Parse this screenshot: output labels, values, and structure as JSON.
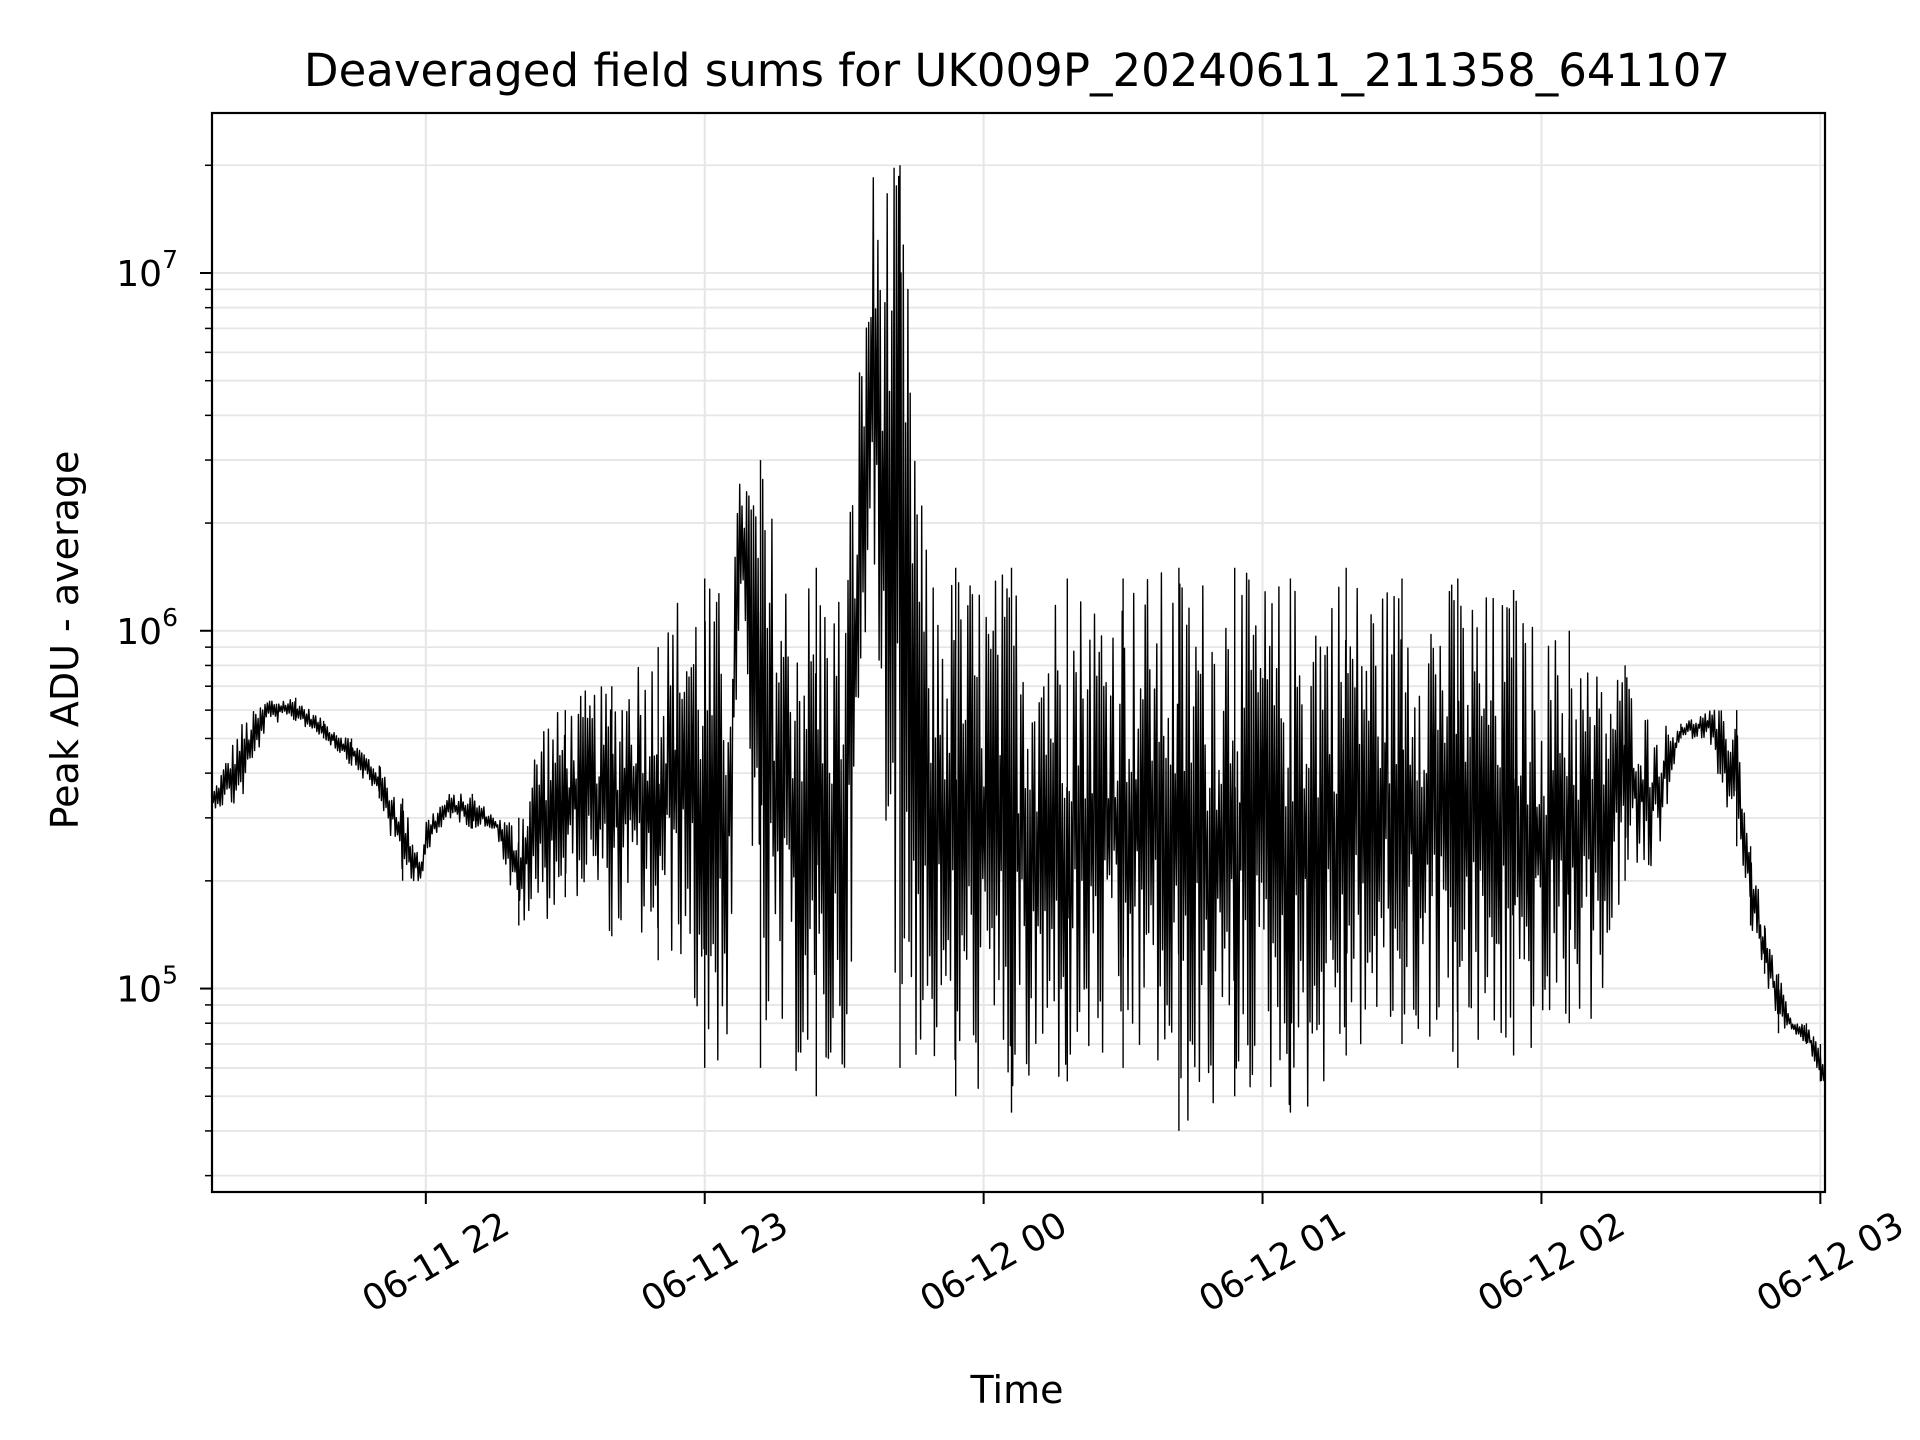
{
  "chart_data": {
    "type": "line",
    "title": "Deaveraged field sums for UK009P_20240611_211358_641107",
    "xlabel": "Time",
    "ylabel": "Peak ADU - average",
    "yscale": "log",
    "xlim": [
      "2024-06-11 21:14",
      "2024-06-12 03:01"
    ],
    "ylim": [
      27000,
      28000000
    ],
    "grid": true,
    "line_color": "#000000",
    "grid_color": "#e6e6e6",
    "x_tick_labels": [
      "06-11 22",
      "06-11 23",
      "06-12 00",
      "06-12 01",
      "06-12 02",
      "06-12 03"
    ],
    "y_tick_labels": [
      {
        "base": "10",
        "exp": "5",
        "value": 100000
      },
      {
        "base": "10",
        "exp": "6",
        "value": 1000000
      },
      {
        "base": "10",
        "exp": "7",
        "value": 10000000
      }
    ],
    "series": [
      {
        "x": [
          "2024-06-11 21:14",
          "2024-06-11 21:20",
          "2024-06-11 21:26",
          "2024-06-11 21:32",
          "2024-06-11 21:38",
          "2024-06-11 21:44",
          "2024-06-11 21:50",
          "2024-06-11 21:55",
          "2024-06-11 21:59",
          "2024-06-11 22:00",
          "2024-06-11 22:05",
          "2024-06-11 22:10",
          "2024-06-11 22:15",
          "2024-06-11 22:20",
          "2024-06-11 22:25",
          "2024-06-11 22:30",
          "2024-06-11 22:35",
          "2024-06-11 22:40",
          "2024-06-11 22:45",
          "2024-06-11 22:50",
          "2024-06-11 22:55",
          "2024-06-11 23:00",
          "2024-06-11 23:05",
          "2024-06-11 23:08",
          "2024-06-11 23:12",
          "2024-06-11 23:18",
          "2024-06-11 23:24",
          "2024-06-11 23:30",
          "2024-06-11 23:36",
          "2024-06-11 23:42",
          "2024-06-11 23:48",
          "2024-06-11 23:54",
          "2024-06-12 00:00",
          "2024-06-12 00:06",
          "2024-06-12 00:12",
          "2024-06-12 00:18",
          "2024-06-12 00:24",
          "2024-06-12 00:30",
          "2024-06-12 00:36",
          "2024-06-12 00:42",
          "2024-06-12 00:48",
          "2024-06-12 00:54",
          "2024-06-12 01:00",
          "2024-06-12 01:06",
          "2024-06-12 01:12",
          "2024-06-12 01:18",
          "2024-06-12 01:24",
          "2024-06-12 01:30",
          "2024-06-12 01:36",
          "2024-06-12 01:42",
          "2024-06-12 01:48",
          "2024-06-12 01:54",
          "2024-06-12 02:00",
          "2024-06-12 02:06",
          "2024-06-12 02:12",
          "2024-06-12 02:18",
          "2024-06-12 02:24",
          "2024-06-12 02:30",
          "2024-06-12 02:36",
          "2024-06-12 02:42",
          "2024-06-12 02:45",
          "2024-06-12 02:48",
          "2024-06-12 02:51",
          "2024-06-12 02:54",
          "2024-06-12 02:57",
          "2024-06-12 03:00",
          "2024-06-12 03:01"
        ],
        "y": [
          350000,
          320000,
          550000,
          650000,
          560000,
          500000,
          420000,
          340000,
          200000,
          230000,
          300000,
          350000,
          280000,
          300000,
          150000,
          600000,
          180000,
          700000,
          140000,
          900000,
          120000,
          1400000,
          60000,
          1300000,
          3000000,
          60000,
          1500000,
          50000,
          1400000,
          20000000,
          60000,
          1500000,
          50000,
          1500000,
          45000,
          1400000,
          55000,
          1400000,
          60000,
          1500000,
          40000,
          1500000,
          50000,
          1400000,
          45000,
          1500000,
          65000,
          1400000,
          70000,
          1400000,
          60000,
          1300000,
          65000,
          1000000,
          80000,
          800000,
          200000,
          550000,
          500000,
          600000,
          250000,
          150000,
          110000,
          75000,
          80000,
          70000,
          55000
        ]
      }
    ]
  }
}
